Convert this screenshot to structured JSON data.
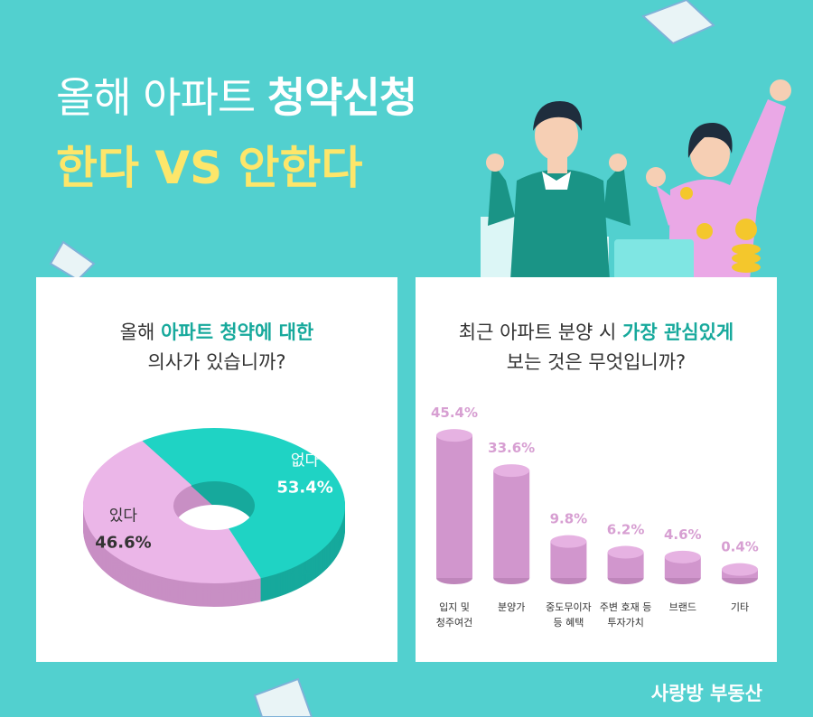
{
  "header": {
    "title_regular": "올해 아파트",
    "title_bold": "청약신청",
    "subtitle": "한다 VS 안한다"
  },
  "logo": "사랑방 부동산",
  "chart_data": [
    {
      "type": "pie",
      "title": [
        "올해 ",
        "아파트 청약에 대한",
        "의사가 있습니까?"
      ],
      "categories": [
        "있다",
        "없다"
      ],
      "values": [
        46.6,
        53.4
      ],
      "value_labels": [
        "46.6%",
        "53.4%"
      ],
      "colors": [
        "#ebb6e8",
        "#1fd3c4"
      ],
      "side_colors": [
        "#c88fc4",
        "#16a99c"
      ]
    },
    {
      "type": "bar",
      "title": [
        "최근 아파트 분양 시 ",
        "가장 관심있게",
        "보는 것은 무엇입니까?"
      ],
      "categories": [
        "입지 및\n청주여건",
        "분양가",
        "중도무이자\n등 혜택",
        "주변 호재 등\n투자가치",
        "브랜드",
        "기타"
      ],
      "values": [
        45.4,
        33.6,
        9.8,
        6.2,
        4.6,
        0.4
      ],
      "value_labels": [
        "45.4%",
        "33.6%",
        "9.8%",
        "6.2%",
        "4.6%",
        "0.4%"
      ],
      "color": "#d196cd"
    }
  ]
}
